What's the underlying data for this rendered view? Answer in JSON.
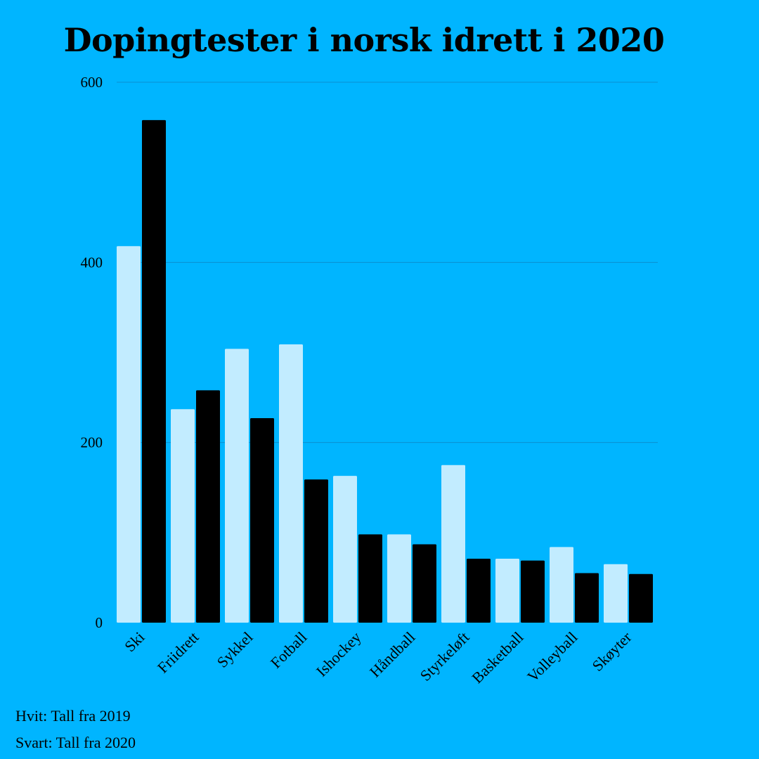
{
  "colors": {
    "background": "#00B5FF",
    "series_2019": "#C2ECFF",
    "series_2020": "#000000",
    "grid": "#0A8FD0"
  },
  "chart_data": {
    "type": "bar",
    "title": "Dopingtester i norsk idrett i 2020",
    "xlabel": "",
    "ylabel": "",
    "ylim": [
      0,
      600
    ],
    "yticks": [
      0,
      200,
      400,
      600
    ],
    "grid": true,
    "categories": [
      "Ski",
      "Friidrett",
      "Sykkel",
      "Fotball",
      "Ishockey",
      "Håndball",
      "Styrkeløft",
      "Basketball",
      "Volleyball",
      "Skøyter"
    ],
    "series": [
      {
        "values": [
          418,
          237,
          304,
          309,
          163,
          98,
          175,
          71,
          84,
          65
        ]
      },
      {
        "values": [
          558,
          258,
          227,
          159,
          98,
          87,
          71,
          69,
          55,
          54
        ]
      }
    ]
  },
  "legend": {
    "line_2019": "Hvit: Tall fra 2019",
    "line_2020": "Svart: Tall fra 2020"
  }
}
